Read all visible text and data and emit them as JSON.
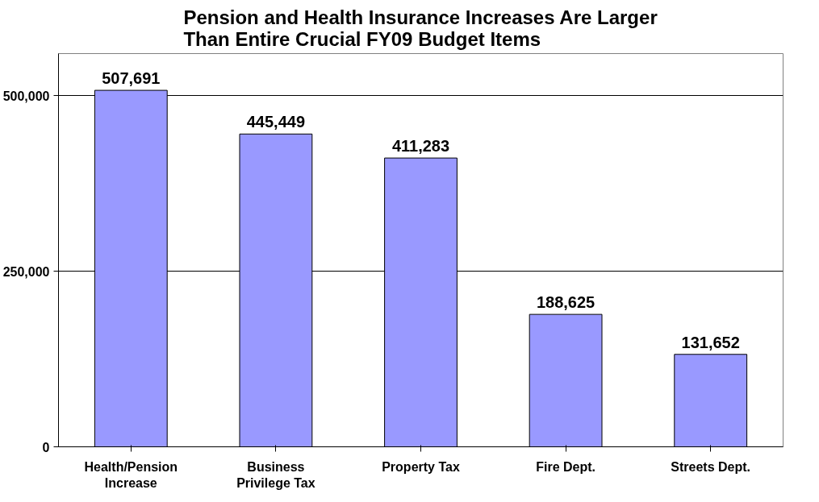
{
  "chart_data": {
    "type": "bar",
    "title": "Pension and Health Insurance Increases Are Larger Than Entire Crucial FY09 Budget Items",
    "categories": [
      "Health/Pension Increase",
      "Business Privilege Tax",
      "Property Tax",
      "Fire Dept.",
      "Streets Dept."
    ],
    "values": [
      507691,
      445449,
      411283,
      188625,
      131652
    ],
    "color": "#9999ff",
    "ylim": [
      0,
      560000
    ],
    "yticks": [
      {
        "value": 0,
        "label": "0"
      },
      {
        "value": 250000,
        "label": "250,000"
      },
      {
        "value": 500000,
        "label": "500,000"
      }
    ],
    "value_labels": [
      "507,691",
      "445,449",
      "411,283",
      "188,625",
      "131,652"
    ],
    "grid": "y"
  }
}
